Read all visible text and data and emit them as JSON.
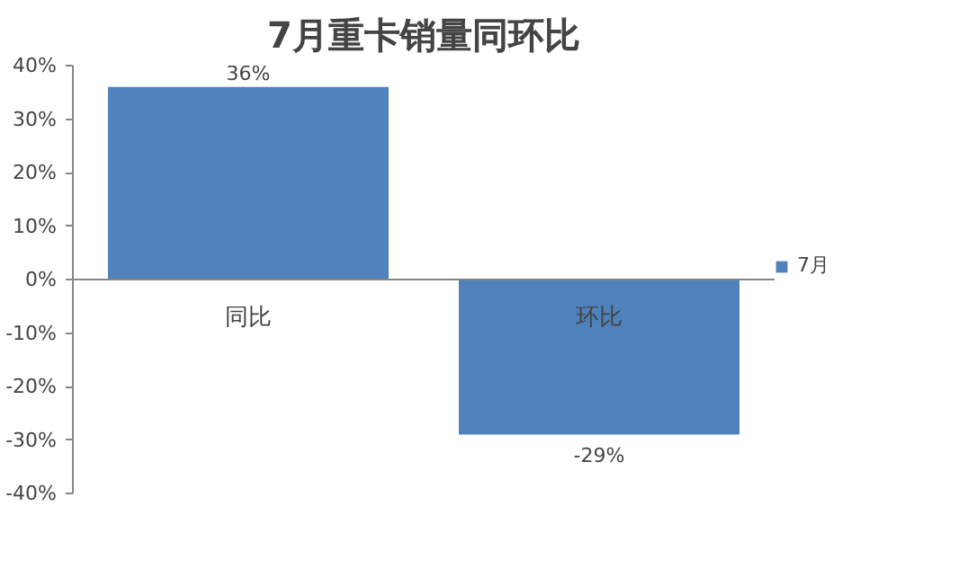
{
  "chart_data": {
    "type": "bar",
    "title": "7月重卡销量同环比",
    "categories": [
      "同比",
      "环比"
    ],
    "series": [
      {
        "name": "7月",
        "color": "#4f81bd",
        "values": [
          36,
          -29
        ]
      }
    ],
    "value_labels": [
      "36%",
      "-29%"
    ],
    "ylim": [
      -40,
      40
    ],
    "yticks": [
      {
        "value": -40,
        "label": "-40%"
      },
      {
        "value": -30,
        "label": "-30%"
      },
      {
        "value": -20,
        "label": "-20%"
      },
      {
        "value": -10,
        "label": "-10%"
      },
      {
        "value": 0,
        "label": "0%"
      },
      {
        "value": 10,
        "label": "10%"
      },
      {
        "value": 20,
        "label": "20%"
      },
      {
        "value": 30,
        "label": "30%"
      },
      {
        "value": 40,
        "label": "40%"
      }
    ],
    "grid": false,
    "legend": "right"
  }
}
